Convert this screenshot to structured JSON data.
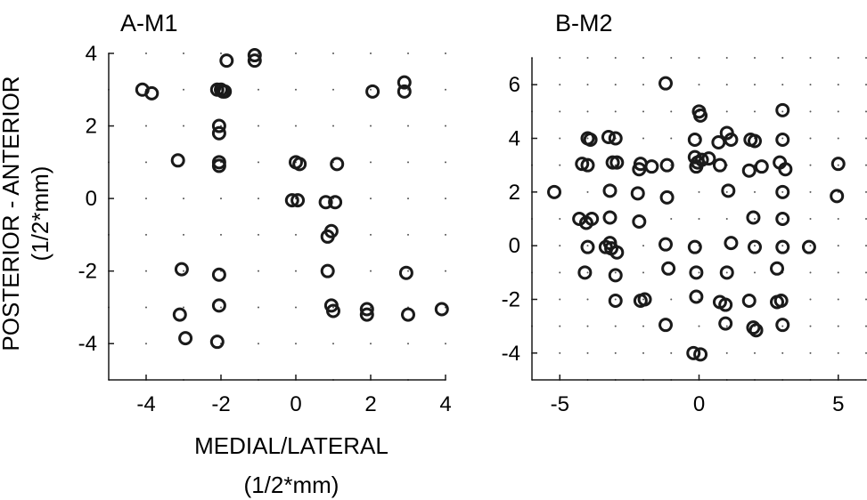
{
  "figure": {
    "ylabel_line1": "POSTERIOR - ANTERIOR",
    "ylabel_line2": "(1/2*mm)",
    "xlabel_line1": "MEDIAL/LATERAL",
    "xlabel_line2": "(1/2*mm)"
  },
  "chart_data": [
    {
      "type": "scatter",
      "title": "A-M1",
      "xlim": [
        -5,
        4
      ],
      "ylim": [
        -5,
        4
      ],
      "xticks": [
        "-4",
        "-2",
        "0",
        "2",
        "4"
      ],
      "xtick_values": [
        -4,
        -2,
        0,
        2,
        4
      ],
      "yticks": [
        "4",
        "2",
        "0",
        "-2",
        "-4"
      ],
      "ytick_values": [
        4,
        2,
        0,
        -2,
        -4
      ],
      "grid": "dotted",
      "marker": "open-circle",
      "points": [
        [
          -4.1,
          3.0
        ],
        [
          -3.85,
          2.9
        ],
        [
          -1.1,
          3.95
        ],
        [
          -1.1,
          3.8
        ],
        [
          -1.85,
          3.8
        ],
        [
          -2.1,
          3.0
        ],
        [
          -2.0,
          3.0
        ],
        [
          -1.95,
          2.95
        ],
        [
          -1.9,
          2.95
        ],
        [
          2.05,
          2.95
        ],
        [
          2.9,
          3.2
        ],
        [
          2.9,
          2.95
        ],
        [
          -2.05,
          2.0
        ],
        [
          -2.05,
          1.8
        ],
        [
          -3.15,
          1.05
        ],
        [
          -2.05,
          1.0
        ],
        [
          -2.05,
          0.9
        ],
        [
          0.0,
          1.0
        ],
        [
          0.1,
          0.95
        ],
        [
          1.1,
          0.95
        ],
        [
          -0.1,
          -0.05
        ],
        [
          0.05,
          -0.05
        ],
        [
          0.8,
          -0.1
        ],
        [
          1.05,
          -0.1
        ],
        [
          0.85,
          -1.05
        ],
        [
          0.95,
          -0.9
        ],
        [
          -3.05,
          -1.95
        ],
        [
          -2.05,
          -2.1
        ],
        [
          0.85,
          -2.0
        ],
        [
          2.95,
          -2.05
        ],
        [
          -2.05,
          -2.95
        ],
        [
          0.95,
          -2.95
        ],
        [
          1.0,
          -3.1
        ],
        [
          1.9,
          -3.05
        ],
        [
          1.9,
          -3.2
        ],
        [
          -3.1,
          -3.2
        ],
        [
          3.0,
          -3.2
        ],
        [
          3.9,
          -3.05
        ],
        [
          -2.95,
          -3.85
        ],
        [
          -2.1,
          -3.95
        ]
      ]
    },
    {
      "type": "scatter",
      "title": "B-M2",
      "xlim": [
        -6,
        6
      ],
      "ylim": [
        -5,
        7
      ],
      "xticks": [
        "-5",
        "0",
        "5"
      ],
      "xtick_values": [
        -5,
        0,
        5
      ],
      "yticks": [
        "6",
        "4",
        "2",
        "0",
        "-2",
        "-4"
      ],
      "ytick_values": [
        6,
        4,
        2,
        0,
        -2,
        -4
      ],
      "grid": "dotted",
      "marker": "open-circle",
      "points": [
        [
          -1.2,
          6.05
        ],
        [
          0.0,
          5.0
        ],
        [
          0.05,
          4.85
        ],
        [
          3.0,
          5.05
        ],
        [
          -4.0,
          4.0
        ],
        [
          -3.9,
          3.95
        ],
        [
          -3.25,
          4.05
        ],
        [
          -3.0,
          4.0
        ],
        [
          -0.15,
          3.95
        ],
        [
          0.7,
          3.85
        ],
        [
          1.0,
          4.2
        ],
        [
          1.15,
          3.95
        ],
        [
          1.85,
          3.95
        ],
        [
          2.0,
          3.9
        ],
        [
          3.0,
          3.95
        ],
        [
          -4.2,
          3.05
        ],
        [
          -4.0,
          3.0
        ],
        [
          -3.1,
          3.1
        ],
        [
          -2.95,
          3.1
        ],
        [
          -2.1,
          3.05
        ],
        [
          -2.15,
          2.85
        ],
        [
          -1.7,
          2.95
        ],
        [
          -1.15,
          3.0
        ],
        [
          -0.15,
          3.3
        ],
        [
          -0.05,
          3.1
        ],
        [
          0.1,
          3.2
        ],
        [
          0.35,
          3.25
        ],
        [
          -0.1,
          2.95
        ],
        [
          0.75,
          3.0
        ],
        [
          1.8,
          2.8
        ],
        [
          2.25,
          2.95
        ],
        [
          2.9,
          3.1
        ],
        [
          3.1,
          2.85
        ],
        [
          5.0,
          3.05
        ],
        [
          -5.2,
          2.0
        ],
        [
          -3.2,
          2.05
        ],
        [
          -2.2,
          1.95
        ],
        [
          -1.15,
          1.8
        ],
        [
          1.05,
          2.05
        ],
        [
          3.0,
          2.0
        ],
        [
          4.95,
          1.85
        ],
        [
          -4.3,
          1.0
        ],
        [
          -4.05,
          0.85
        ],
        [
          -3.85,
          1.0
        ],
        [
          -3.2,
          1.05
        ],
        [
          -2.15,
          0.9
        ],
        [
          1.95,
          1.05
        ],
        [
          3.0,
          1.0
        ],
        [
          -4.0,
          -0.05
        ],
        [
          -3.35,
          -0.05
        ],
        [
          -3.2,
          0.1
        ],
        [
          -3.15,
          -0.1
        ],
        [
          -2.95,
          -0.25
        ],
        [
          -1.2,
          0.05
        ],
        [
          -0.15,
          -0.05
        ],
        [
          1.15,
          0.1
        ],
        [
          2.0,
          -0.05
        ],
        [
          3.0,
          -0.05
        ],
        [
          3.95,
          -0.05
        ],
        [
          -4.1,
          -1.0
        ],
        [
          -3.0,
          -1.1
        ],
        [
          -1.1,
          -0.85
        ],
        [
          -0.1,
          -1.0
        ],
        [
          1.0,
          -1.0
        ],
        [
          2.8,
          -0.85
        ],
        [
          -3.0,
          -2.05
        ],
        [
          -2.1,
          -2.05
        ],
        [
          -1.95,
          -2.0
        ],
        [
          -0.1,
          -1.9
        ],
        [
          0.75,
          -2.1
        ],
        [
          0.95,
          -2.2
        ],
        [
          1.8,
          -2.05
        ],
        [
          2.8,
          -2.1
        ],
        [
          2.95,
          -2.05
        ],
        [
          -1.2,
          -2.95
        ],
        [
          0.95,
          -2.9
        ],
        [
          1.95,
          -3.05
        ],
        [
          2.05,
          -3.15
        ],
        [
          3.0,
          -2.95
        ],
        [
          -0.2,
          -4.0
        ],
        [
          0.05,
          -4.05
        ]
      ]
    }
  ]
}
